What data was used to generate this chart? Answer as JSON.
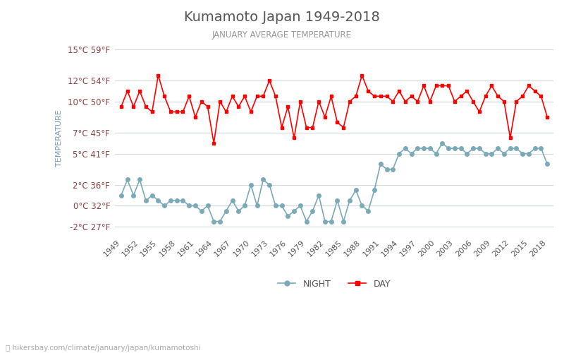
{
  "title": "Kumamoto Japan 1949-2018",
  "subtitle": "JANUARY AVERAGE TEMPERATURE",
  "ylabel": "TEMPERATURE",
  "footer": "hikersbay.com/climate/january/japan/kumamotoshi",
  "ylim_c": [
    -3,
    16
  ],
  "yticks_c": [
    -2,
    0,
    2,
    5,
    7,
    10,
    12,
    15
  ],
  "yticks_f": [
    27,
    32,
    36,
    41,
    45,
    50,
    54,
    59
  ],
  "years": [
    1949,
    1950,
    1951,
    1952,
    1953,
    1954,
    1955,
    1956,
    1957,
    1958,
    1959,
    1960,
    1961,
    1962,
    1963,
    1964,
    1965,
    1966,
    1967,
    1968,
    1969,
    1970,
    1971,
    1972,
    1973,
    1974,
    1975,
    1976,
    1977,
    1978,
    1979,
    1980,
    1981,
    1982,
    1983,
    1984,
    1985,
    1986,
    1987,
    1988,
    1989,
    1990,
    1991,
    1992,
    1993,
    1994,
    1995,
    1996,
    1997,
    1998,
    1999,
    2000,
    2001,
    2002,
    2003,
    2004,
    2005,
    2006,
    2007,
    2008,
    2009,
    2010,
    2011,
    2012,
    2013,
    2014,
    2015,
    2016,
    2017,
    2018
  ],
  "day_temps": [
    9.5,
    11.0,
    9.5,
    11.0,
    9.5,
    9.0,
    12.5,
    10.5,
    9.0,
    9.0,
    9.0,
    10.5,
    8.5,
    10.0,
    9.5,
    6.0,
    10.0,
    9.0,
    10.5,
    9.5,
    10.5,
    9.0,
    10.5,
    10.5,
    12.0,
    10.5,
    7.5,
    9.5,
    6.5,
    10.0,
    7.5,
    7.5,
    10.0,
    8.5,
    10.5,
    8.0,
    7.5,
    10.0,
    10.5,
    12.5,
    11.0,
    10.5,
    10.5,
    10.5,
    10.0,
    11.0,
    10.0,
    10.5,
    10.0,
    11.5,
    10.0,
    11.5,
    11.5,
    11.5,
    10.0,
    10.5,
    11.0,
    10.0,
    9.0,
    10.5,
    11.5,
    10.5,
    10.0,
    6.5,
    10.0,
    10.5,
    11.5,
    11.0,
    10.5,
    8.5
  ],
  "night_temps": [
    1.0,
    2.5,
    1.0,
    2.5,
    0.5,
    1.0,
    0.5,
    0.0,
    0.5,
    0.5,
    0.5,
    0.0,
    0.0,
    -0.5,
    0.0,
    -1.5,
    -1.5,
    -0.5,
    0.5,
    -0.5,
    0.0,
    2.0,
    0.0,
    2.5,
    2.0,
    0.0,
    0.0,
    -1.0,
    -0.5,
    0.0,
    -1.5,
    -0.5,
    1.0,
    -1.5,
    -1.5,
    0.5,
    -1.5,
    0.5,
    1.5,
    0.0,
    -0.5,
    1.5,
    4.0,
    3.5,
    3.5,
    5.0,
    5.5,
    5.0,
    5.5,
    5.5,
    5.5,
    5.0,
    6.0,
    5.5,
    5.5,
    5.5,
    5.0,
    5.5,
    5.5,
    5.0,
    5.0,
    5.5,
    5.0,
    5.5,
    5.5,
    5.0,
    5.0,
    5.5,
    5.5,
    4.0
  ],
  "day_color": "#ff0000",
  "night_color": "#7aaab8",
  "title_color": "#555555",
  "subtitle_color": "#999999",
  "label_color": "#8b4040",
  "bg_color": "#ffffff",
  "grid_color": "#d0d8e0",
  "footer_color": "#aaaaaa",
  "legend_night": "NIGHT",
  "legend_day": "DAY"
}
